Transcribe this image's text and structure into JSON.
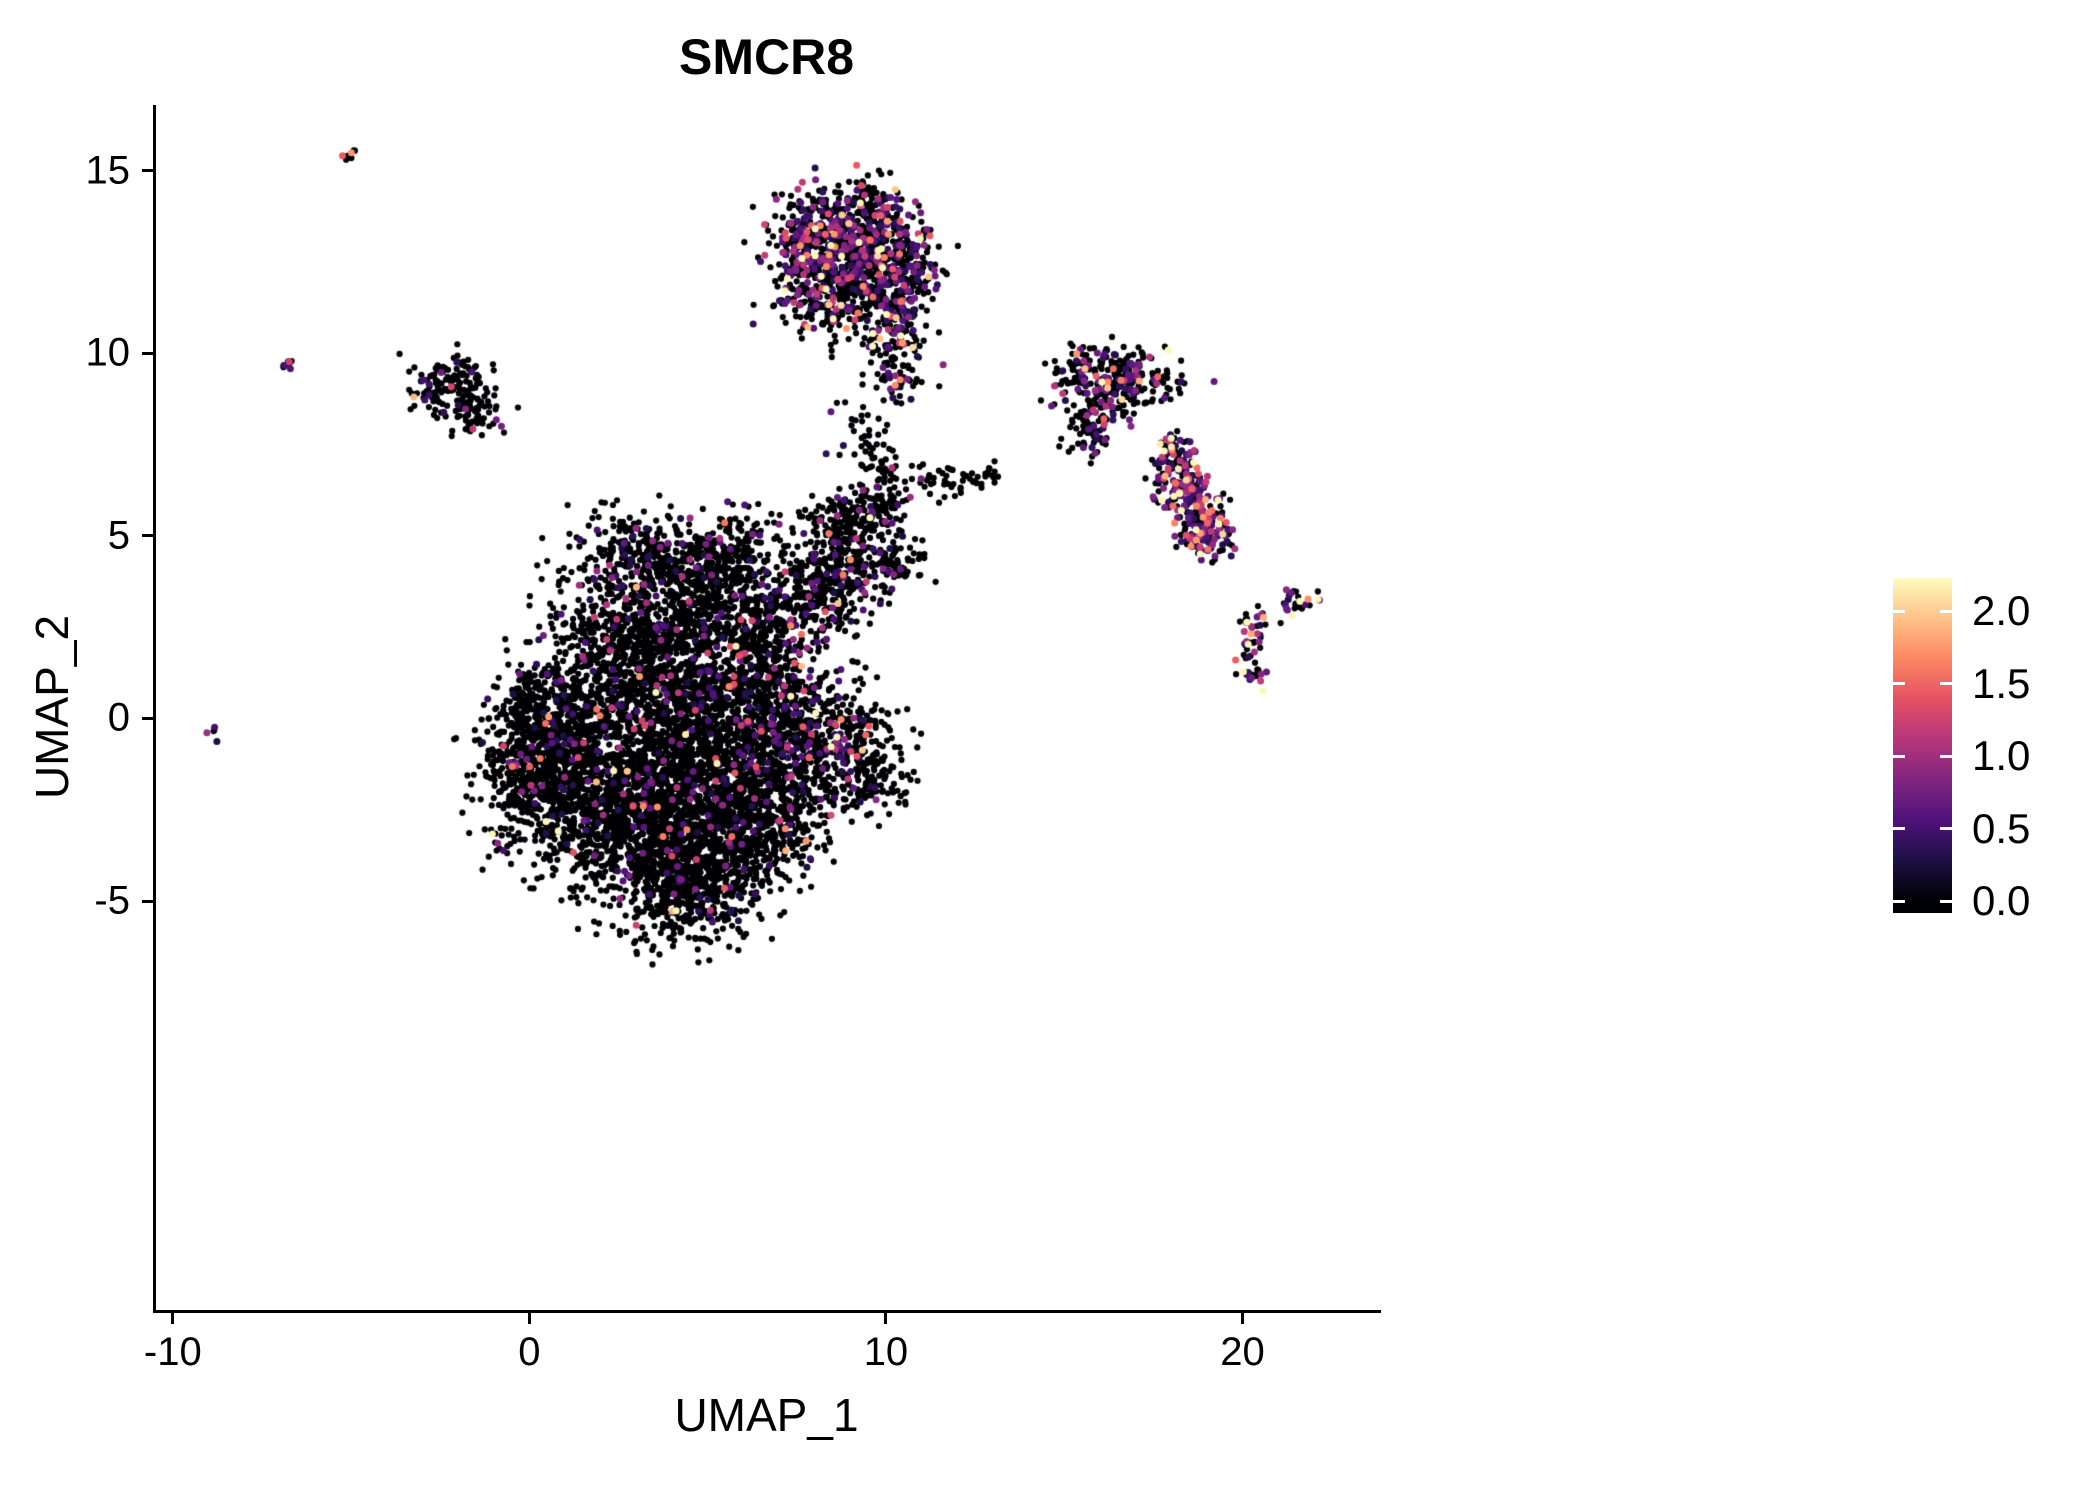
{
  "chart_data": {
    "type": "scatter",
    "title": "SMCR8",
    "xlabel": "UMAP_1",
    "ylabel": "UMAP_2",
    "xlim": [
      -10.5,
      23.8
    ],
    "ylim": [
      -16.2,
      16.8
    ],
    "grid": false,
    "legend_position": "right",
    "x_ticks": [
      {
        "v": -10,
        "label": "-10"
      },
      {
        "v": 0,
        "label": "0"
      },
      {
        "v": 10,
        "label": "10"
      },
      {
        "v": 20,
        "label": "20"
      }
    ],
    "y_ticks": [
      {
        "v": 15,
        "label": "15"
      },
      {
        "v": 10,
        "label": "10"
      },
      {
        "v": 5,
        "label": "5"
      },
      {
        "v": 0,
        "label": "0"
      },
      {
        "v": -5,
        "label": "-5"
      }
    ],
    "colorbar": {
      "ticks": [
        {
          "v": 2.0,
          "label": "2.0"
        },
        {
          "v": 1.5,
          "label": "1.5"
        },
        {
          "v": 1.0,
          "label": "1.0"
        },
        {
          "v": 0.5,
          "label": "0.5"
        },
        {
          "v": 0.0,
          "label": "0.0"
        }
      ],
      "bar_vmin": -0.08,
      "bar_vmax": 2.23,
      "color_vmax": 2.23,
      "palette": "magma",
      "magma_stops": [
        [
          0.0,
          0,
          0,
          4
        ],
        [
          0.125,
          28,
          16,
          68
        ],
        [
          0.25,
          79,
          18,
          123
        ],
        [
          0.375,
          129,
          37,
          129
        ],
        [
          0.5,
          181,
          54,
          122
        ],
        [
          0.625,
          229,
          80,
          100
        ],
        [
          0.75,
          251,
          135,
          97
        ],
        [
          0.875,
          254,
          194,
          135
        ],
        [
          1.0,
          252,
          253,
          191
        ]
      ]
    },
    "point_radius": 3.1,
    "point_radius_expressed": 3.5,
    "seed": 42,
    "cluster_fields": [
      "center_x",
      "center_y",
      "sd_x",
      "sd_y",
      "n_cells",
      "fraction_expressed",
      "expression_scale"
    ],
    "clusters": [
      [
        0.2,
        -1.2,
        0.85,
        1.1,
        550,
        0.07,
        0.5
      ],
      [
        1.5,
        -1.8,
        1.1,
        1.2,
        650,
        0.05,
        0.5
      ],
      [
        0.8,
        0.3,
        0.8,
        0.8,
        300,
        0.05,
        0.5
      ],
      [
        2.8,
        -3.2,
        1.1,
        1.0,
        500,
        0.05,
        0.5
      ],
      [
        4.3,
        -4.6,
        1.0,
        0.8,
        400,
        0.05,
        0.5
      ],
      [
        5.3,
        -3.6,
        0.9,
        0.9,
        400,
        0.05,
        0.5
      ],
      [
        4.0,
        -1.8,
        1.2,
        1.2,
        600,
        0.05,
        0.5
      ],
      [
        5.8,
        -1.6,
        1.0,
        1.1,
        500,
        0.06,
        0.5
      ],
      [
        3.2,
        0.6,
        1.0,
        0.9,
        400,
        0.06,
        0.5
      ],
      [
        5.0,
        0.3,
        1.0,
        0.9,
        400,
        0.06,
        0.5
      ],
      [
        2.4,
        2.2,
        1.0,
        0.9,
        400,
        0.07,
        0.5
      ],
      [
        4.3,
        2.8,
        1.0,
        0.8,
        350,
        0.07,
        0.5
      ],
      [
        3.1,
        4.4,
        0.9,
        0.65,
        280,
        0.13,
        0.5
      ],
      [
        5.7,
        4.6,
        0.7,
        0.55,
        180,
        0.1,
        0.5
      ],
      [
        4.8,
        4.0,
        0.6,
        0.5,
        120,
        0.08,
        0.5
      ],
      [
        6.2,
        2.6,
        0.7,
        0.7,
        200,
        0.08,
        0.5
      ],
      [
        6.8,
        1.0,
        0.8,
        0.9,
        280,
        0.12,
        0.5
      ],
      [
        7.3,
        -0.8,
        0.8,
        0.9,
        280,
        0.12,
        0.5
      ],
      [
        7.0,
        -2.8,
        0.8,
        0.7,
        220,
        0.06,
        0.5
      ],
      [
        8.7,
        -0.6,
        0.8,
        0.8,
        250,
        0.1,
        0.55
      ],
      [
        9.6,
        -1.6,
        0.6,
        0.6,
        130,
        0.12,
        0.55
      ],
      [
        8.0,
        3.3,
        0.8,
        0.8,
        260,
        0.13,
        0.55
      ],
      [
        8.9,
        4.4,
        0.7,
        0.65,
        180,
        0.12,
        0.55
      ],
      [
        9.7,
        5.7,
        0.5,
        0.45,
        110,
        0.08,
        0.5
      ],
      [
        8.6,
        5.4,
        0.4,
        0.35,
        70,
        0.08,
        0.5
      ],
      [
        10.4,
        4.3,
        0.4,
        0.4,
        60,
        0.1,
        0.55
      ],
      [
        9.9,
        6.8,
        0.4,
        0.3,
        25,
        0.05,
        0.5
      ],
      [
        11.3,
        6.5,
        0.5,
        0.25,
        30,
        0.05,
        0.5
      ],
      [
        12.4,
        6.6,
        0.35,
        0.2,
        18,
        0.05,
        0.5
      ],
      [
        9.3,
        7.8,
        0.45,
        0.7,
        40,
        0.05,
        0.5
      ],
      [
        8.4,
        13.4,
        0.8,
        0.6,
        280,
        0.4,
        0.55
      ],
      [
        9.7,
        13.0,
        0.8,
        0.6,
        280,
        0.38,
        0.55
      ],
      [
        9.0,
        12.0,
        0.9,
        0.7,
        280,
        0.25,
        0.55
      ],
      [
        10.4,
        11.9,
        0.6,
        0.6,
        160,
        0.35,
        0.55
      ],
      [
        8.1,
        11.4,
        0.5,
        0.5,
        110,
        0.3,
        0.55
      ],
      [
        7.6,
        12.6,
        0.4,
        0.5,
        90,
        0.3,
        0.55
      ],
      [
        10.2,
        10.4,
        0.4,
        0.5,
        80,
        0.25,
        0.55
      ],
      [
        10.35,
        9.4,
        0.3,
        0.45,
        50,
        0.25,
        0.55
      ],
      [
        9.5,
        14.4,
        0.25,
        0.3,
        35,
        0.25,
        0.55
      ],
      [
        -2.1,
        9.3,
        0.5,
        0.35,
        90,
        0.05,
        0.5
      ],
      [
        -1.6,
        8.5,
        0.45,
        0.4,
        80,
        0.05,
        0.5
      ],
      [
        -2.7,
        8.85,
        0.25,
        0.2,
        30,
        0.15,
        1.0
      ],
      [
        16.0,
        9.0,
        0.6,
        0.55,
        160,
        0.3,
        0.55
      ],
      [
        16.8,
        9.4,
        0.5,
        0.4,
        90,
        0.3,
        0.55
      ],
      [
        15.6,
        8.0,
        0.35,
        0.4,
        50,
        0.2,
        0.5
      ],
      [
        17.6,
        9.3,
        0.45,
        0.3,
        45,
        0.18,
        0.5
      ],
      [
        15.3,
        9.6,
        0.3,
        0.3,
        35,
        0.2,
        0.5
      ],
      [
        18.2,
        6.9,
        0.35,
        0.35,
        70,
        0.6,
        0.7
      ],
      [
        18.5,
        6.1,
        0.4,
        0.4,
        110,
        0.6,
        0.7
      ],
      [
        18.8,
        5.2,
        0.35,
        0.35,
        90,
        0.55,
        0.7
      ],
      [
        19.3,
        4.9,
        0.3,
        0.25,
        45,
        0.5,
        0.7
      ],
      [
        18.0,
        7.5,
        0.2,
        0.2,
        25,
        0.5,
        0.7
      ],
      [
        20.3,
        1.3,
        0.2,
        0.25,
        25,
        0.5,
        0.7
      ],
      [
        20.4,
        2.6,
        0.25,
        0.25,
        22,
        0.5,
        0.7
      ],
      [
        21.4,
        3.2,
        0.35,
        0.18,
        26,
        0.5,
        0.7
      ],
      [
        20.1,
        2.0,
        0.12,
        0.15,
        10,
        0.4,
        0.6
      ],
      [
        -5.0,
        15.4,
        0.12,
        0.1,
        9,
        0.45,
        1.0
      ],
      [
        -6.8,
        9.7,
        0.12,
        0.1,
        9,
        0.3,
        0.6
      ],
      [
        -8.9,
        -0.4,
        0.08,
        0.08,
        5,
        0.5,
        0.6
      ],
      [
        12.9,
        6.7,
        0.2,
        0.15,
        12,
        0.05,
        0.5
      ]
    ]
  }
}
